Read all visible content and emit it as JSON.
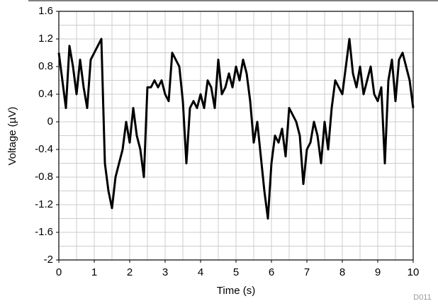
{
  "chart_data": {
    "type": "line",
    "xlabel": "Time (s)",
    "ylabel": "Voltage (µV)",
    "annotation": "D011",
    "xlim": [
      0,
      10
    ],
    "xticks": [
      0,
      1,
      2,
      3,
      4,
      5,
      6,
      7,
      8,
      9,
      10
    ],
    "ylim": [
      -2,
      1.6
    ],
    "yticks": [
      1.6,
      1.2,
      0.8,
      0.4,
      0,
      -0.4,
      -0.8,
      -1.2,
      -1.6,
      -2
    ],
    "grid": true,
    "x": [
      0,
      0.1,
      0.2,
      0.3,
      0.4,
      0.5,
      0.6,
      0.7,
      0.8,
      0.9,
      1,
      1.1,
      1.2,
      1.3,
      1.4,
      1.5,
      1.6,
      1.7,
      1.8,
      1.9,
      2,
      2.1,
      2.2,
      2.3,
      2.4,
      2.5,
      2.6,
      2.7,
      2.8,
      2.9,
      3,
      3.1,
      3.2,
      3.3,
      3.4,
      3.5,
      3.6,
      3.7,
      3.8,
      3.9,
      4,
      4.1,
      4.2,
      4.3,
      4.4,
      4.5,
      4.6,
      4.7,
      4.8,
      4.9,
      5,
      5.1,
      5.2,
      5.3,
      5.4,
      5.5,
      5.6,
      5.7,
      5.8,
      5.9,
      6,
      6.1,
      6.2,
      6.3,
      6.4,
      6.5,
      6.6,
      6.7,
      6.8,
      6.9,
      7,
      7.1,
      7.2,
      7.3,
      7.4,
      7.5,
      7.6,
      7.7,
      7.8,
      7.9,
      8,
      8.1,
      8.2,
      8.3,
      8.4,
      8.5,
      8.6,
      8.7,
      8.8,
      8.9,
      9,
      9.1,
      9.2,
      9.3,
      9.4,
      9.5,
      9.6,
      9.7,
      9.8,
      9.9,
      10
    ],
    "series": [
      {
        "color": "#000000",
        "values": [
          1.0,
          0.6,
          0.2,
          1.1,
          0.8,
          0.4,
          0.9,
          0.5,
          0.2,
          0.9,
          1.0,
          1.1,
          1.2,
          -0.6,
          -1.0,
          -1.25,
          -0.8,
          -0.6,
          -0.4,
          0.0,
          -0.3,
          0.2,
          -0.2,
          -0.4,
          -0.8,
          0.5,
          0.5,
          0.6,
          0.5,
          0.6,
          0.4,
          0.3,
          1.0,
          0.9,
          0.8,
          0.3,
          -0.6,
          0.2,
          0.3,
          0.2,
          0.4,
          0.2,
          0.6,
          0.5,
          0.2,
          0.9,
          0.4,
          0.5,
          0.7,
          0.5,
          0.8,
          0.6,
          0.9,
          0.7,
          0.3,
          -0.3,
          0.0,
          -0.5,
          -1.0,
          -1.4,
          -0.6,
          -0.2,
          -0.3,
          -0.1,
          -0.5,
          0.2,
          0.1,
          0.0,
          -0.2,
          -0.9,
          -0.4,
          -0.3,
          0.0,
          -0.2,
          -0.6,
          0.0,
          -0.4,
          0.2,
          0.6,
          0.5,
          0.4,
          0.8,
          1.2,
          0.7,
          0.5,
          0.8,
          0.4,
          0.6,
          0.8,
          0.4,
          0.3,
          0.5,
          -0.6,
          0.6,
          0.9,
          0.3,
          0.9,
          1.0,
          0.8,
          0.6,
          0.2
        ]
      }
    ]
  }
}
